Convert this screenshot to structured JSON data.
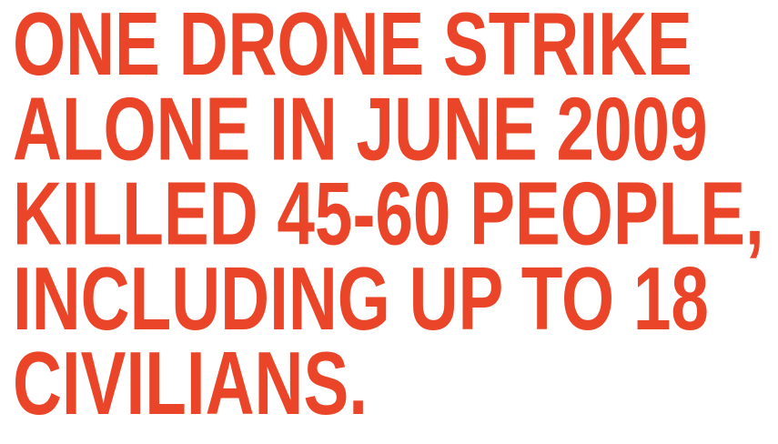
{
  "lines": [
    "ONE DRONE STRIKE",
    "ALONE IN JUNE 2009",
    "KILLED 45-60 PEOPLE,",
    "INCLUDING UP TO 18",
    "CIVILIANS."
  ]
}
